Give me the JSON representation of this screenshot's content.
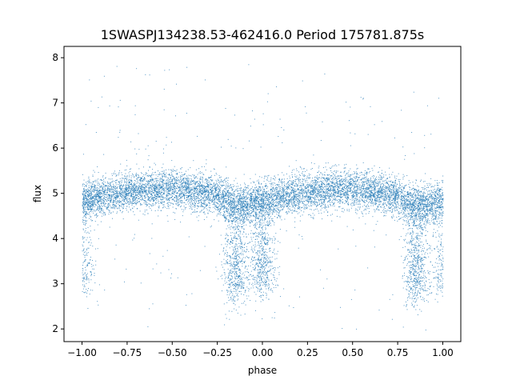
{
  "chart_data": {
    "type": "scatter",
    "title": "1SWASPJ134238.53-462416.0 Period 175781.875s",
    "xlabel": "phase",
    "ylabel": "flux",
    "xlim": [
      -1.1,
      1.1
    ],
    "ylim": [
      1.72,
      8.25
    ],
    "xticks": [
      -1.0,
      -0.75,
      -0.5,
      -0.25,
      0.0,
      0.25,
      0.5,
      0.75,
      1.0
    ],
    "xtick_labels": [
      "−1.00",
      "−0.75",
      "−0.50",
      "−0.25",
      "0.00",
      "0.25",
      "0.50",
      "0.75",
      "1.00"
    ],
    "yticks": [
      2,
      3,
      4,
      5,
      6,
      7,
      8
    ],
    "ytick_labels": [
      "2",
      "3",
      "4",
      "5",
      "6",
      "7",
      "8"
    ],
    "grid": false,
    "marker_color": "#1f77b4",
    "series": [
      {
        "phase_range": [
          -1.0,
          1.0
        ],
        "baseline_flux": 4.95,
        "baseline_scatter": 0.3,
        "outlier_flux_range": [
          2.0,
          7.9
        ],
        "eclipse_points": [
          {
            "phase": -1.0,
            "flux": 3.0
          },
          {
            "phase": -0.15,
            "flux": 2.9
          },
          {
            "phase": 0.0,
            "flux": 3.0
          },
          {
            "phase": 0.85,
            "flux": 2.9
          },
          {
            "phase": 1.0,
            "flux": 3.0
          }
        ],
        "samples": [
          {
            "phase": -1.0,
            "flux": 4.85
          },
          {
            "phase": -0.85,
            "flux": 4.95
          },
          {
            "phase": -0.75,
            "flux": 5.05
          },
          {
            "phase": -0.6,
            "flux": 5.1
          },
          {
            "phase": -0.5,
            "flux": 5.1
          },
          {
            "phase": -0.4,
            "flux": 5.05
          },
          {
            "phase": -0.25,
            "flux": 4.95
          },
          {
            "phase": -0.15,
            "flux": 4.7
          },
          {
            "phase": -0.05,
            "flux": 4.8
          },
          {
            "phase": 0.0,
            "flux": 4.85
          },
          {
            "phase": 0.15,
            "flux": 4.95
          },
          {
            "phase": 0.25,
            "flux": 5.05
          },
          {
            "phase": 0.4,
            "flux": 5.1
          },
          {
            "phase": 0.5,
            "flux": 5.1
          },
          {
            "phase": 0.6,
            "flux": 5.05
          },
          {
            "phase": 0.75,
            "flux": 4.95
          },
          {
            "phase": 0.85,
            "flux": 4.7
          },
          {
            "phase": 0.95,
            "flux": 4.8
          },
          {
            "phase": 1.0,
            "flux": 4.85
          }
        ]
      }
    ]
  }
}
